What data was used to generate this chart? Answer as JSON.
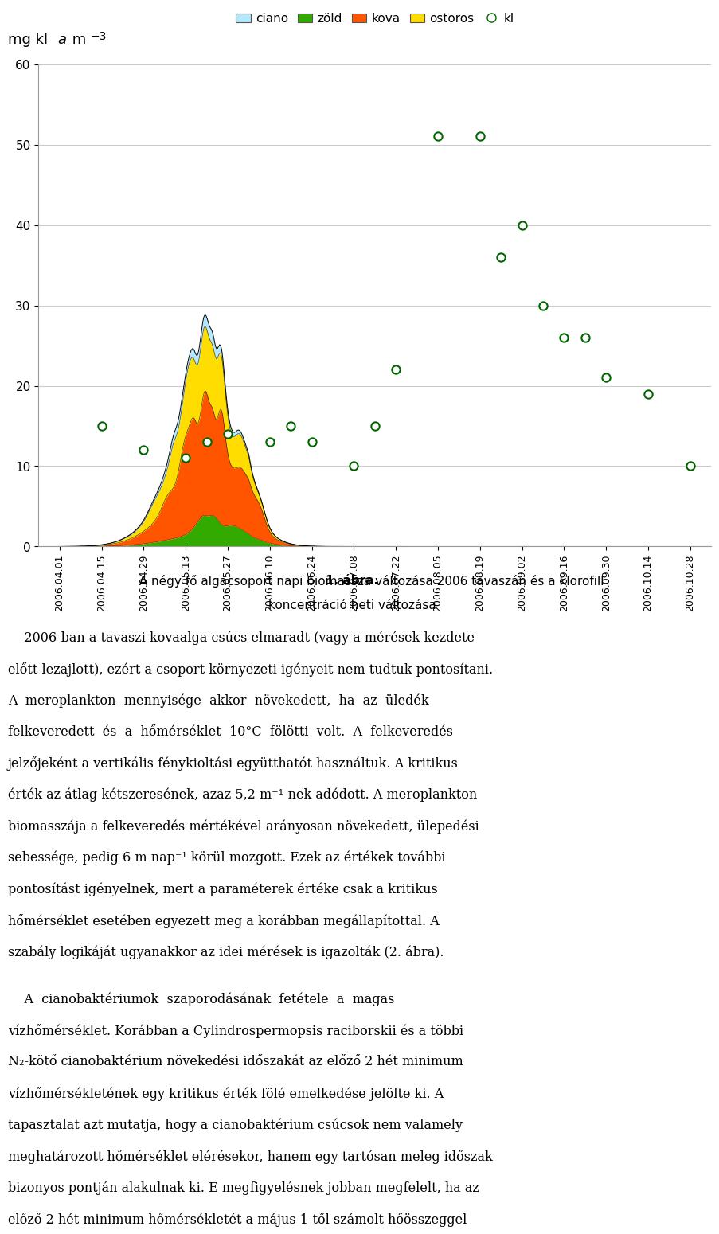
{
  "dates": [
    "2006.04.01",
    "2006.04.15",
    "2006.04.29",
    "2006.05.13",
    "2006.05.27",
    "2006.06.10",
    "2006.06.24",
    "2006.07.08",
    "2006.07.22",
    "2006.08.05",
    "2006.08.19",
    "2006.09.02",
    "2006.09.16",
    "2006.09.30",
    "2006.10.14",
    "2006.10.28"
  ],
  "kl_scatter_x": [
    1,
    2,
    3,
    3.5,
    4,
    5,
    5.5,
    6,
    7,
    7.5,
    8,
    9,
    10,
    10.5,
    11,
    11.5,
    12,
    12.5,
    13,
    14,
    15
  ],
  "kl_scatter_y": [
    15,
    12,
    11,
    13,
    14,
    13,
    15,
    13,
    10,
    15,
    22,
    51,
    51,
    36,
    40,
    30,
    26,
    26,
    21,
    19,
    10
  ],
  "ciano_color": "#b3e8ff",
  "zold_color": "#33aa00",
  "kova_color": "#ff5500",
  "ostoros_color": "#ffdd00",
  "kl_edge_color": "#006600",
  "ylim": [
    0,
    60
  ],
  "yticks": [
    0,
    10,
    20,
    30,
    40,
    50,
    60
  ],
  "grid_color": "#cccccc",
  "caption_bold": "1. ábra.",
  "caption_normal": " A négy fő algacsoport napi biomassza változása 2006 tavaszán és a klorofill",
  "caption_line2": "koncentráció heti változása",
  "para1": "    2006-ban a tavaszi kovaalga csúcs elmaradt (vagy a mérések kezdete\nelőtt lezajlott), ezért a csoport környezeti igényeit nem tudtuk pontosítani.\nA meroplankton mennyisége akkor növekedett, ha az üledék\nfelkeveredett és a hőmérséklet 10°C fölötti volt. A felkeveredés\njel zőjeként a vertikális fénykioltási együtth atót használtuk. A kritikus\nérték az átlag kétszeresének, azaz 5,2 m⁻¹-nek adódott. A meroplankton\nbiomasszája a felkeveredés mértékével arányosan növekedett, ülepedési\nsebessége, pedig 6 m nap⁻¹ körül mozgott. Ezek az értékek további\npontosítást igényelnek, mert a paraméterek értéke csak a kritikus\nhőmérséklet esetében egyezett meg a korábban megállapítottal. A\nszabály logikáját ugyanakkor az idei mérések is igazolták (2. ábra).",
  "para2": "    A cianobaktériumok szaporodásának fetétele a magas\nvízhőmérséklet. Korábban a Cylindrospermopsis raciborskii és a többi\nN₂-kötő cianobaktérium növekedési időszakát az előző 2 hét minimum\nvízhőmérsékletének egy kritikus érték fölé emelkedése jelölte ki. A\ntapasztalat azt mutatja, hogy a cianobaktérium csúcsok nem valamely\nmeghatározott hőmérséklet elérésekor, hanem egy tartósan meleg időszak\nbizonyos pontján alakulnak ki. E megfigye lésnek jobban megfelelt, ha az\nelőző 2 hét minimum hőmérsékletét a május 1-től számolt hőösszeggel"
}
